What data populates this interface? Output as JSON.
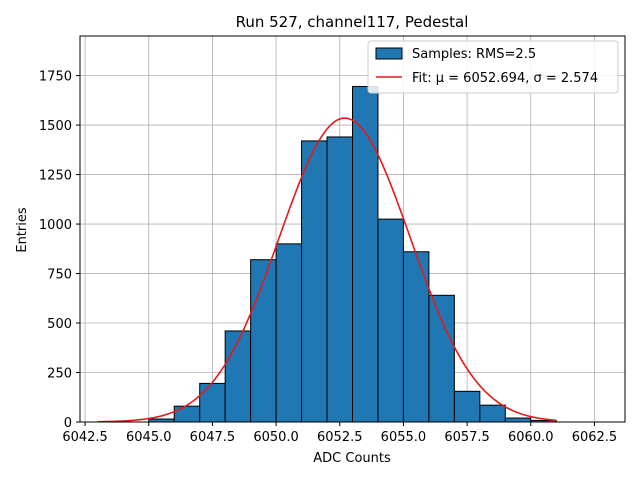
{
  "chart_data": {
    "type": "bar",
    "title": "Run 527, channel117, Pedestal",
    "xlabel": "ADC Counts",
    "ylabel": "Entries",
    "xlim": [
      6042.3,
      6063.7
    ],
    "ylim": [
      0,
      1950
    ],
    "xticks": [
      6042.5,
      6045.0,
      6047.5,
      6050.0,
      6052.5,
      6055.0,
      6057.5,
      6060.0,
      6062.5
    ],
    "xtick_labels": [
      "6042.5",
      "6045.0",
      "6047.5",
      "6050.0",
      "6052.5",
      "6055.0",
      "6057.5",
      "6060.0",
      "6062.5"
    ],
    "yticks": [
      0,
      250,
      500,
      750,
      1000,
      1250,
      1500,
      1750
    ],
    "ytick_labels": [
      "0",
      "250",
      "500",
      "750",
      "1000",
      "1250",
      "1500",
      "1750"
    ],
    "grid": true,
    "legend_position": "top-right",
    "bin_edges": [
      6045,
      6046,
      6047,
      6048,
      6049,
      6050,
      6051,
      6052,
      6053,
      6054,
      6055,
      6056,
      6057,
      6058,
      6059,
      6060,
      6061
    ],
    "series": [
      {
        "name": "Samples: RMS=2.5",
        "kind": "histogram",
        "color": "#1f77b4",
        "values": [
          15,
          80,
          195,
          460,
          820,
          900,
          1420,
          1440,
          1695,
          1025,
          860,
          640,
          155,
          85,
          20,
          8
        ]
      },
      {
        "name": "Fit: μ = 6052.694, σ = 2.574",
        "kind": "line",
        "color": "#e41a1c",
        "mu": 6052.694,
        "sigma": 2.574,
        "amplitude": 1535,
        "x_range": [
          6043,
          6061
        ]
      }
    ]
  }
}
